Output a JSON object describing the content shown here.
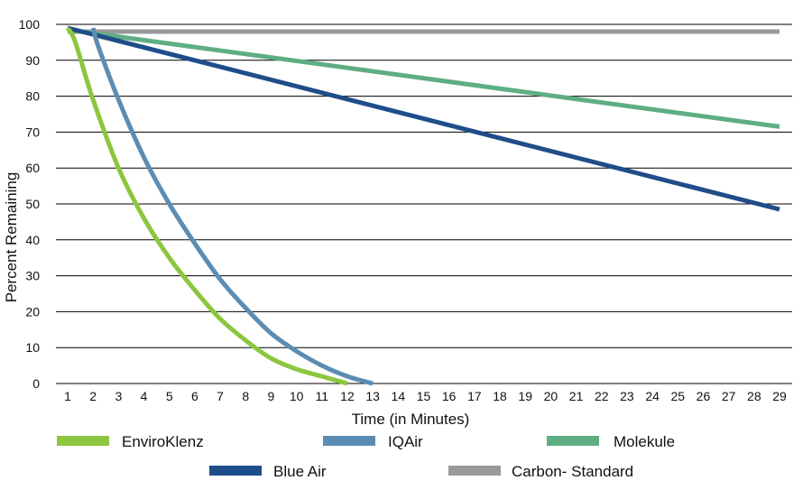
{
  "chart_data": {
    "type": "line",
    "title": "",
    "xlabel": "Time (in Minutes)",
    "ylabel": "Percent Remaining",
    "xlim": [
      1,
      29
    ],
    "ylim": [
      0,
      100
    ],
    "x_ticks": [
      1,
      2,
      3,
      4,
      5,
      6,
      7,
      8,
      9,
      10,
      11,
      12,
      13,
      14,
      15,
      16,
      17,
      18,
      19,
      20,
      21,
      22,
      23,
      24,
      25,
      26,
      27,
      28,
      29
    ],
    "y_ticks": [
      0,
      10,
      20,
      30,
      40,
      50,
      60,
      70,
      80,
      90,
      100
    ],
    "grid": "horizontal",
    "legend_placement": "bottom",
    "series": [
      {
        "name": "EnviroKlenz",
        "color": "#8cc63f",
        "x": [
          1,
          1.3,
          2,
          3,
          4,
          5,
          6,
          7,
          8,
          9,
          10,
          11,
          12
        ],
        "y": [
          99,
          95,
          79,
          60,
          46,
          35,
          26,
          18,
          12,
          7,
          4,
          2,
          0
        ]
      },
      {
        "name": "IQAir",
        "color": "#5b8db4",
        "x": [
          2,
          2.2,
          3,
          4,
          5,
          6,
          7,
          8,
          9,
          10,
          11,
          12,
          13
        ],
        "y": [
          99,
          94,
          79,
          63,
          50,
          39,
          29,
          21,
          14,
          9,
          5,
          2,
          0
        ]
      },
      {
        "name": "Molekule",
        "color": "#5fae82",
        "x": [
          1,
          29
        ],
        "y": [
          98.5,
          71.5
        ]
      },
      {
        "name": "Blue Air",
        "color": "#1f4d8a",
        "x": [
          1,
          29
        ],
        "y": [
          99,
          48.5
        ]
      },
      {
        "name": "Carbon- Standard",
        "color": "#999999",
        "x": [
          1,
          29
        ],
        "y": [
          98,
          98
        ]
      }
    ]
  }
}
